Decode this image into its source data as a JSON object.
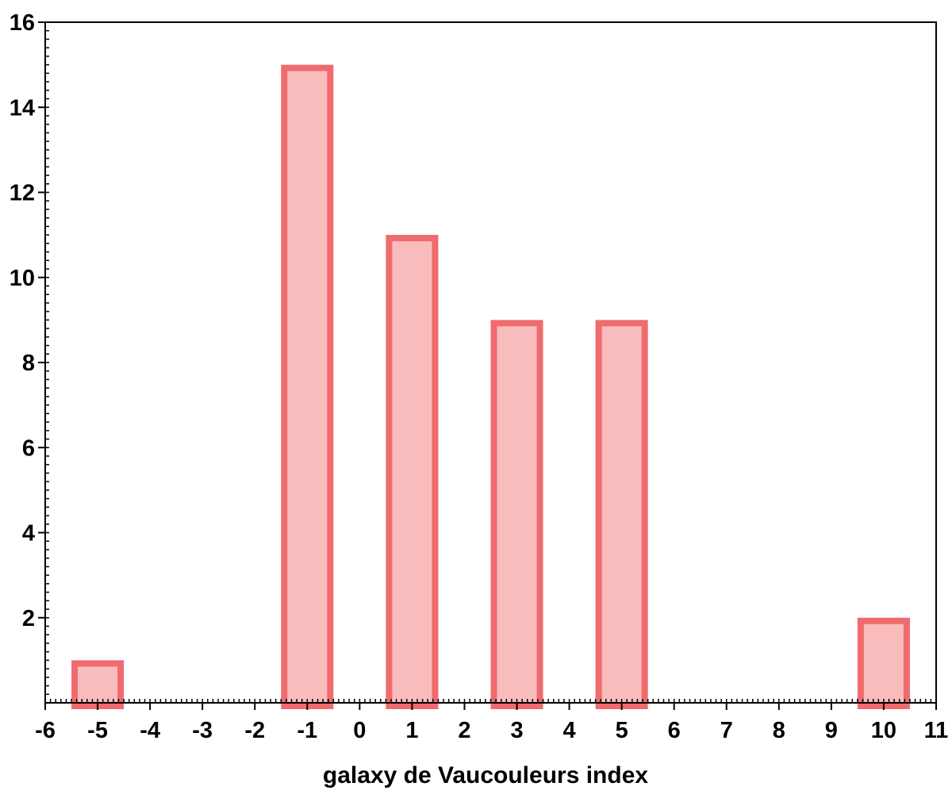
{
  "chart_data": {
    "type": "bar",
    "title": "",
    "xlabel": "galaxy de Vaucouleurs index",
    "ylabel": "",
    "xlim": [
      -6,
      11
    ],
    "ylim": [
      0,
      16
    ],
    "x_ticks": [
      -6,
      -5,
      -4,
      -3,
      -2,
      -1,
      0,
      1,
      2,
      3,
      4,
      5,
      6,
      7,
      8,
      9,
      10,
      11
    ],
    "y_ticks": [
      2,
      4,
      6,
      8,
      10,
      12,
      14,
      16
    ],
    "bar_width": 1,
    "bars": [
      {
        "x": -5,
        "value": 1
      },
      {
        "x": -1,
        "value": 15
      },
      {
        "x": 1,
        "value": 11
      },
      {
        "x": 3,
        "value": 9
      },
      {
        "x": 5,
        "value": 9
      },
      {
        "x": 10,
        "value": 2
      }
    ],
    "grid": false,
    "colors": {
      "bar_fill": "#f9bcbc",
      "bar_edge": "#ef6b6e"
    }
  }
}
